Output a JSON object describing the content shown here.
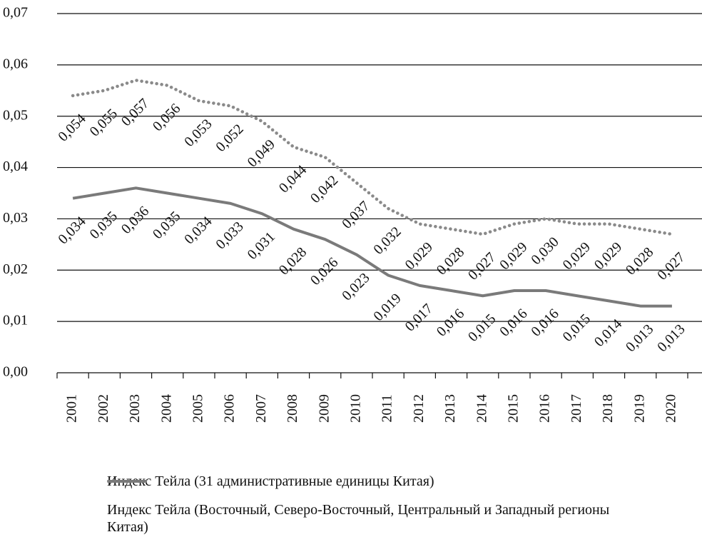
{
  "chart_data": {
    "type": "line",
    "categories": [
      "2001",
      "2002",
      "2003",
      "2004",
      "2005",
      "2006",
      "2007",
      "2008",
      "2009",
      "2010",
      "2011",
      "2012",
      "2013",
      "2014",
      "2015",
      "2016",
      "2017",
      "2018",
      "2019",
      "2020"
    ],
    "series": [
      {
        "name": "Индекс Тейла (31 административные единицы Китая)",
        "color": "#8a8a8a",
        "style": "dotted",
        "values": [
          0.054,
          0.055,
          0.057,
          0.056,
          0.053,
          0.052,
          0.049,
          0.044,
          0.042,
          0.037,
          0.032,
          0.029,
          0.028,
          0.027,
          0.029,
          0.03,
          0.029,
          0.029,
          0.028,
          0.027
        ],
        "value_labels": [
          "0,054",
          "0,055",
          "0,057",
          "0,056",
          "0,053",
          "0,052",
          "0,049",
          "0,044",
          "0,042",
          "0,037",
          "0,032",
          "0,029",
          "0,028",
          "0,027",
          "0,029",
          "0,030",
          "0,029",
          "0,029",
          "0,028",
          "0,027"
        ]
      },
      {
        "name": "Индекс Тейла (Восточный, Северо-Восточный, Центральный и Западный регионы Китая)",
        "color": "#7a7a7a",
        "style": "solid",
        "values": [
          0.034,
          0.035,
          0.036,
          0.035,
          0.034,
          0.033,
          0.031,
          0.028,
          0.026,
          0.023,
          0.019,
          0.017,
          0.016,
          0.015,
          0.016,
          0.016,
          0.015,
          0.014,
          0.013,
          0.013
        ],
        "value_labels": [
          "0,034",
          "0,035",
          "0,036",
          "0,035",
          "0,034",
          "0,033",
          "0,031",
          "0,028",
          "0,026",
          "0,023",
          "0,019",
          "0,017",
          "0,016",
          "0,015",
          "0,016",
          "0,016",
          "0,015",
          "0,014",
          "0,013",
          "0,013"
        ]
      }
    ],
    "ylim": [
      0,
      0.07
    ],
    "yticks": [
      {
        "value": 0,
        "label": "0,00"
      },
      {
        "value": 0.01,
        "label": "0,01"
      },
      {
        "value": 0.02,
        "label": "0,02"
      },
      {
        "value": 0.03,
        "label": "0,03"
      },
      {
        "value": 0.04,
        "label": "0,04"
      },
      {
        "value": 0.05,
        "label": "0,05"
      },
      {
        "value": 0.06,
        "label": "0,06"
      },
      {
        "value": 0.07,
        "label": "0,07"
      }
    ],
    "grid": true,
    "legend": "bottom"
  }
}
